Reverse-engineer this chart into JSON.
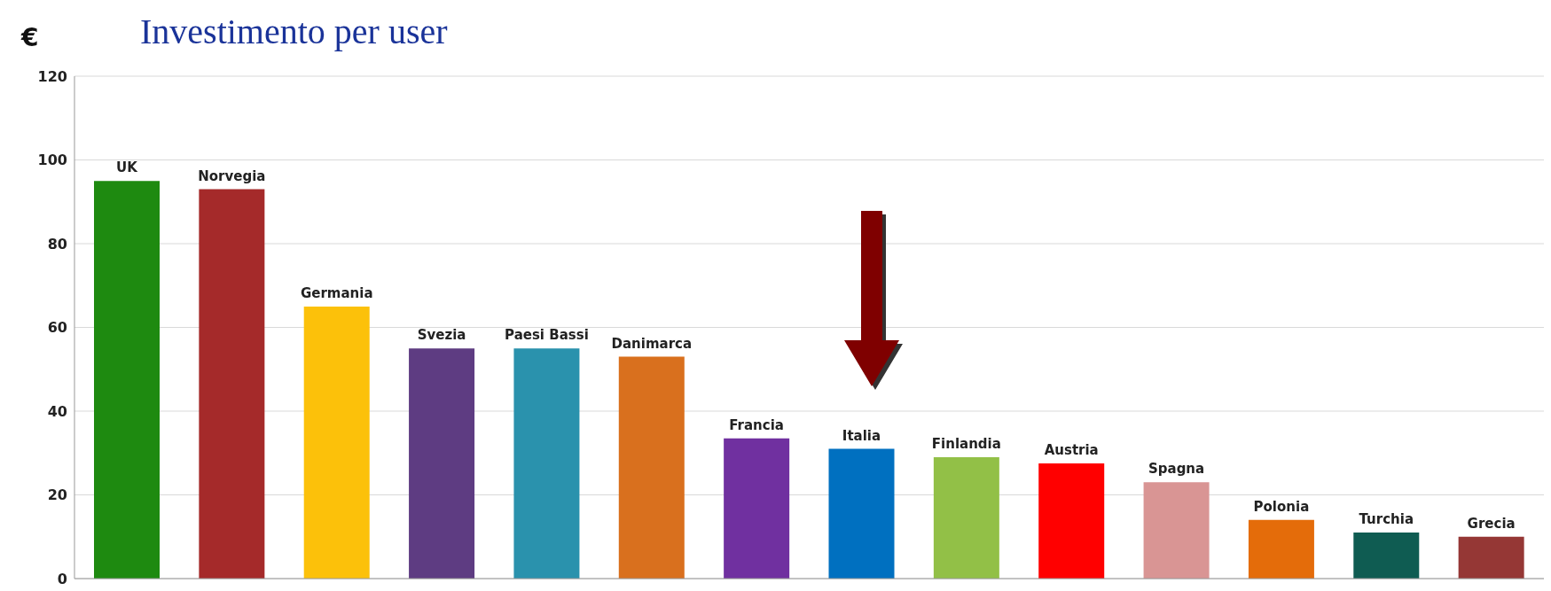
{
  "chart_data": {
    "type": "bar",
    "title": "Investimento per user",
    "ylabel": "€",
    "categories": [
      "UK",
      "Norvegia",
      "Germania",
      "Svezia",
      "Paesi Bassi",
      "Danimarca",
      "Francia",
      "Italia",
      "Finlandia",
      "Austria",
      "Spagna",
      "Polonia",
      "Turchia",
      "Grecia"
    ],
    "values": [
      95,
      93,
      65,
      55,
      55,
      53,
      33.5,
      31,
      29,
      27.5,
      23,
      14,
      11,
      10
    ],
    "colors": [
      "#1e8a10",
      "#a52a2a",
      "#fcc10a",
      "#5e3c82",
      "#2a92ad",
      "#d9701e",
      "#7030a0",
      "#0070c0",
      "#92c047",
      "#ff0000",
      "#d99594",
      "#e46c0a",
      "#0f5c52",
      "#953735"
    ],
    "ylim": [
      0,
      120
    ],
    "yticks": [
      0,
      20,
      40,
      60,
      80,
      100,
      120
    ],
    "grid": "y",
    "tick_labels": "y"
  }
}
